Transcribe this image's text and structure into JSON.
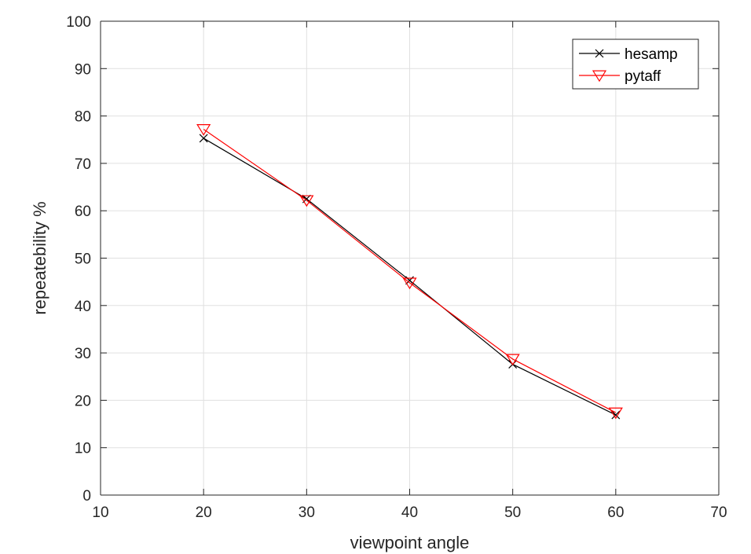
{
  "chart_data": {
    "type": "line",
    "title": "",
    "xlabel": "viewpoint angle",
    "ylabel": "repeatebility %",
    "xlim": [
      10,
      70
    ],
    "ylim": [
      0,
      100
    ],
    "xticks": [
      10,
      20,
      30,
      40,
      50,
      60,
      70
    ],
    "yticks": [
      0,
      10,
      20,
      30,
      40,
      50,
      60,
      70,
      80,
      90,
      100
    ],
    "grid": true,
    "legend_position": "top-right",
    "x": [
      20,
      30,
      40,
      50,
      60
    ],
    "series": [
      {
        "name": "hesamp",
        "values": [
          75.3,
          62.5,
          45.3,
          27.6,
          16.9
        ],
        "color": "#000000",
        "marker": "x"
      },
      {
        "name": "pytaff",
        "values": [
          77.2,
          62.2,
          44.8,
          28.7,
          17.4
        ],
        "color": "#ff0000",
        "marker": "triangle-down"
      }
    ]
  }
}
